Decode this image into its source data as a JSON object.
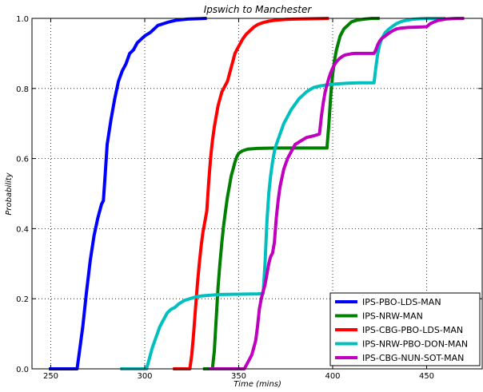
{
  "chart_data": {
    "type": "line",
    "title": "Ipswich to Manchester",
    "xlabel": "Time (mins)",
    "ylabel": "Probability",
    "xlim": [
      240,
      480
    ],
    "ylim": [
      0,
      1.0
    ],
    "xticks": [
      250,
      300,
      350,
      400,
      450
    ],
    "xtick_labels": [
      "250",
      "300",
      "350",
      "400",
      "450"
    ],
    "yticks": [
      0,
      0.2,
      0.4,
      0.6,
      0.8,
      1.0
    ],
    "ytick_labels": [
      "0.0",
      "0.2",
      "0.4",
      "0.6",
      "0.8",
      "1.0"
    ],
    "grid": true,
    "legend_position": "bottom-right",
    "series": [
      {
        "name": "IPS-PBO-LDS-MAN",
        "color": "#0000ff",
        "x": [
          249,
          257,
          264,
          265,
          267,
          269,
          271,
          273,
          275,
          277,
          278,
          279,
          280,
          282,
          284,
          286,
          288,
          290,
          292,
          294,
          296,
          298,
          300,
          303,
          305,
          307,
          310,
          313,
          317,
          323,
          333
        ],
        "y": [
          0.0,
          0.0,
          0.0,
          0.04,
          0.12,
          0.22,
          0.31,
          0.38,
          0.43,
          0.47,
          0.48,
          0.56,
          0.64,
          0.71,
          0.77,
          0.82,
          0.85,
          0.87,
          0.9,
          0.91,
          0.93,
          0.94,
          0.95,
          0.96,
          0.97,
          0.98,
          0.985,
          0.99,
          0.995,
          0.998,
          1.0
        ]
      },
      {
        "name": "IPS-NRW-MAN",
        "color": "#008000",
        "x": [
          331,
          336,
          337,
          338,
          339,
          340,
          341,
          342,
          343,
          344,
          345,
          346,
          347,
          348,
          349,
          350,
          352,
          355,
          360,
          370,
          380,
          390,
          397,
          398,
          399,
          400,
          401,
          402,
          403,
          404,
          406,
          408,
          410,
          413,
          417,
          421,
          425
        ],
        "y": [
          0.0,
          0.0,
          0.05,
          0.14,
          0.23,
          0.3,
          0.36,
          0.41,
          0.45,
          0.49,
          0.52,
          0.55,
          0.57,
          0.59,
          0.605,
          0.615,
          0.622,
          0.627,
          0.629,
          0.63,
          0.63,
          0.63,
          0.63,
          0.7,
          0.78,
          0.84,
          0.88,
          0.91,
          0.93,
          0.95,
          0.97,
          0.98,
          0.99,
          0.995,
          0.998,
          1.0,
          1.0
        ]
      },
      {
        "name": "IPS-CBG-PBO-LDS-MAN",
        "color": "#ff0000",
        "x": [
          315,
          324,
          325,
          326,
          327,
          328,
          329,
          330,
          331,
          332,
          333,
          334,
          335,
          336,
          337,
          338,
          339,
          340,
          341,
          342,
          343,
          344,
          345,
          346,
          347,
          348,
          349,
          350,
          352,
          354,
          356,
          358,
          360,
          363,
          366,
          370,
          375,
          380,
          390,
          398
        ],
        "y": [
          0.0,
          0.0,
          0.04,
          0.1,
          0.17,
          0.24,
          0.3,
          0.35,
          0.39,
          0.42,
          0.45,
          0.53,
          0.6,
          0.65,
          0.69,
          0.72,
          0.75,
          0.77,
          0.79,
          0.8,
          0.81,
          0.82,
          0.84,
          0.86,
          0.88,
          0.9,
          0.91,
          0.92,
          0.94,
          0.955,
          0.965,
          0.975,
          0.982,
          0.988,
          0.992,
          0.995,
          0.997,
          0.998,
          0.999,
          1.0
        ]
      },
      {
        "name": "IPS-NRW-PBO-DON-MAN",
        "color": "#00bfbf",
        "x": [
          287,
          301,
          302,
          304,
          306,
          308,
          310,
          312,
          314,
          316,
          318,
          321,
          324,
          327,
          330,
          335,
          340,
          350,
          360,
          363,
          364,
          365,
          366,
          367,
          368,
          369,
          370,
          372,
          374,
          376,
          378,
          380,
          382,
          384,
          386,
          388,
          390,
          394,
          398,
          402,
          408,
          414,
          422,
          423,
          424,
          425,
          426,
          427,
          428,
          430,
          432,
          434,
          436,
          438,
          440,
          442,
          444,
          447,
          450,
          455,
          460
        ],
        "y": [
          0.0,
          0.0,
          0.02,
          0.06,
          0.09,
          0.12,
          0.14,
          0.16,
          0.17,
          0.175,
          0.185,
          0.195,
          0.2,
          0.205,
          0.208,
          0.21,
          0.212,
          0.213,
          0.214,
          0.215,
          0.3,
          0.42,
          0.5,
          0.55,
          0.59,
          0.62,
          0.64,
          0.67,
          0.7,
          0.72,
          0.74,
          0.755,
          0.77,
          0.78,
          0.79,
          0.797,
          0.803,
          0.808,
          0.811,
          0.813,
          0.815,
          0.816,
          0.816,
          0.86,
          0.9,
          0.925,
          0.94,
          0.95,
          0.96,
          0.97,
          0.978,
          0.985,
          0.99,
          0.993,
          0.995,
          0.997,
          0.998,
          0.999,
          1.0,
          1.0,
          1.0
        ]
      },
      {
        "name": "IPS-CBG-NUN-SOT-MAN",
        "color": "#bf00bf",
        "x": [
          334,
          353,
          354,
          355,
          356,
          357,
          358,
          359,
          360,
          361,
          362,
          363,
          364,
          365,
          366,
          367,
          368,
          369,
          370,
          371,
          372,
          374,
          376,
          378,
          380,
          383,
          386,
          390,
          393,
          394,
          395,
          396,
          397,
          398,
          399,
          400,
          401,
          402,
          403,
          404,
          405,
          406,
          407,
          408,
          409,
          410,
          412,
          414,
          416,
          418,
          420,
          422,
          423,
          424,
          425,
          426,
          428,
          430,
          432,
          434,
          436,
          440,
          445,
          450,
          452,
          454,
          456,
          458,
          460,
          463,
          466,
          470
        ],
        "y": [
          0.0,
          0.0,
          0.01,
          0.02,
          0.03,
          0.04,
          0.06,
          0.08,
          0.12,
          0.17,
          0.2,
          0.22,
          0.24,
          0.27,
          0.3,
          0.32,
          0.33,
          0.36,
          0.43,
          0.48,
          0.52,
          0.57,
          0.6,
          0.62,
          0.64,
          0.65,
          0.66,
          0.665,
          0.67,
          0.72,
          0.76,
          0.79,
          0.81,
          0.83,
          0.845,
          0.858,
          0.868,
          0.876,
          0.882,
          0.887,
          0.891,
          0.894,
          0.896,
          0.897,
          0.898,
          0.899,
          0.9,
          0.9,
          0.9,
          0.9,
          0.9,
          0.9,
          0.91,
          0.925,
          0.935,
          0.942,
          0.95,
          0.958,
          0.965,
          0.97,
          0.972,
          0.974,
          0.975,
          0.976,
          0.985,
          0.99,
          0.994,
          0.996,
          0.998,
          0.999,
          1.0,
          1.0
        ]
      }
    ]
  }
}
